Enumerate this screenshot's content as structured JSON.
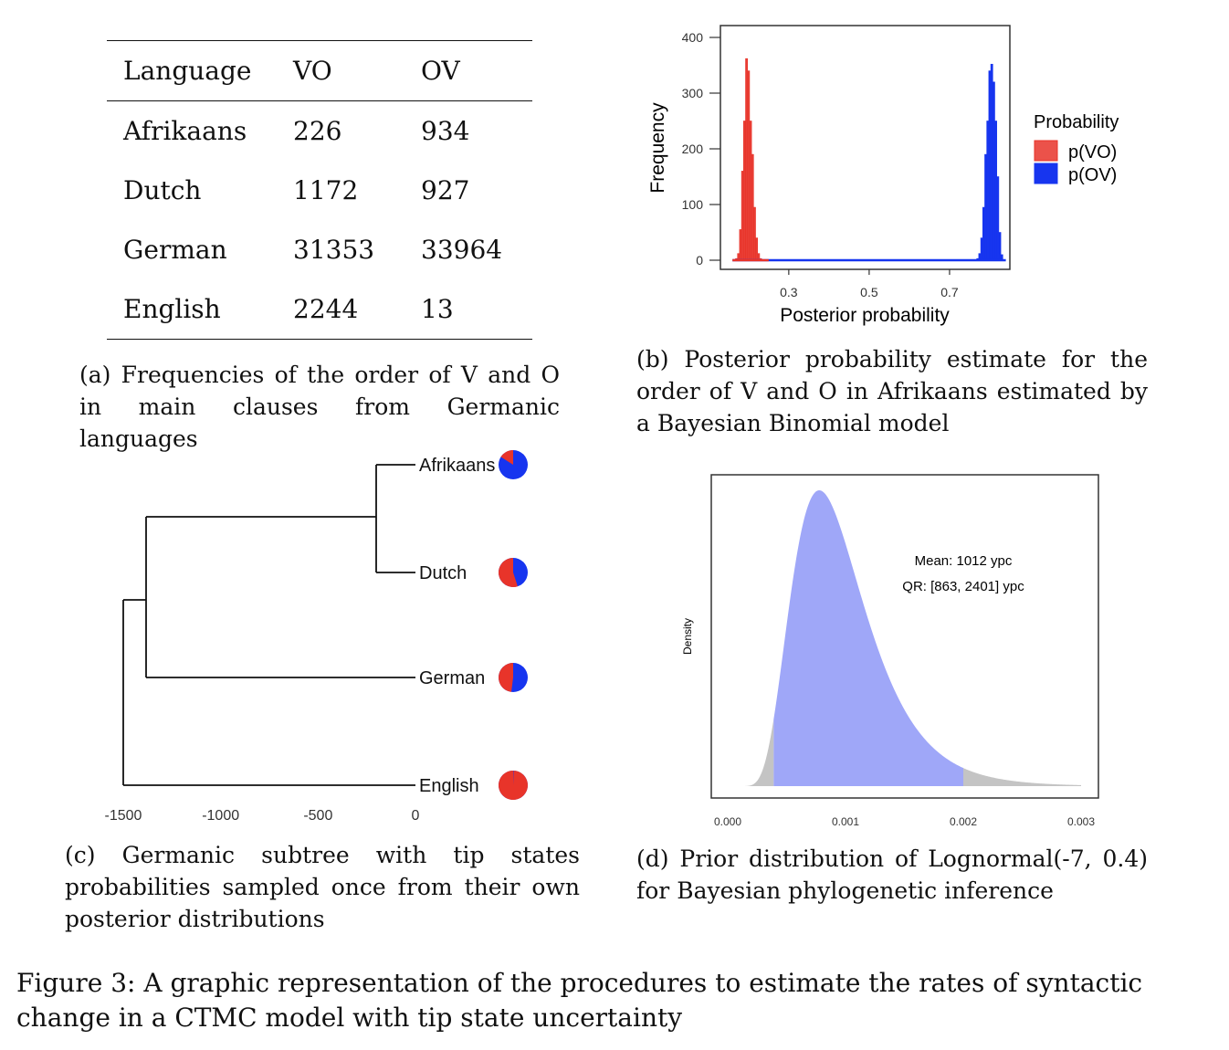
{
  "table_a": {
    "headers": [
      "Language",
      "VO",
      "OV"
    ],
    "rows": [
      [
        "Afrikaans",
        "226",
        "934"
      ],
      [
        "Dutch",
        "1172",
        "927"
      ],
      [
        "German",
        "31353",
        "33964"
      ],
      [
        "English",
        "2244",
        "13"
      ]
    ]
  },
  "captions": {
    "a": "(a) Frequencies of the order of V and O in main clauses from Germanic languages",
    "b": "(b) Posterior probability estimate for the order of V and O in Afrikaans estimated by a Bayesian Binomial model",
    "c": "(c) Germanic subtree with tip states probabilities sampled once from their own posterior distributions",
    "d": "(d) Prior distribution of Lognormal(-7, 0.4) for Bayesian phylogenetic inference",
    "figure": "Figure 3: A graphic representation of the procedures to estimate the rates of syntactic change in a CTMC model with tip state uncertainty"
  },
  "chart_data": [
    {
      "type": "histogram",
      "panel": "b",
      "xlabel": "Posterior probability",
      "ylabel": "Frequency",
      "xticks": [
        0.3,
        0.5,
        0.7
      ],
      "yticks": [
        0,
        100,
        200,
        300,
        400
      ],
      "xlim": [
        0.13,
        0.85
      ],
      "ylim": [
        0,
        410
      ],
      "legend": {
        "title": "Probability",
        "position": "right"
      },
      "series": [
        {
          "name": "p(VO)",
          "color": "#e8342a",
          "x": [
            0.17,
            0.175,
            0.18,
            0.185,
            0.19,
            0.195,
            0.2,
            0.205,
            0.21,
            0.215,
            0.22,
            0.225,
            0.23
          ],
          "values": [
            3,
            12,
            55,
            160,
            250,
            362,
            340,
            250,
            190,
            95,
            40,
            12,
            3
          ]
        },
        {
          "name": "p(OV)",
          "color": "#1735ef",
          "x": [
            0.77,
            0.775,
            0.78,
            0.785,
            0.79,
            0.795,
            0.8,
            0.805,
            0.81,
            0.815,
            0.82,
            0.825,
            0.83
          ],
          "values": [
            3,
            12,
            40,
            95,
            190,
            250,
            340,
            352,
            320,
            250,
            150,
            50,
            10
          ]
        }
      ]
    },
    {
      "type": "tree",
      "panel": "c",
      "xticks": [
        -1500,
        -1000,
        -500,
        0
      ],
      "tips": [
        {
          "name": "Afrikaans",
          "pVO": 0.16,
          "pOV": 0.84
        },
        {
          "name": "Dutch",
          "pVO": 0.55,
          "pOV": 0.45
        },
        {
          "name": "German",
          "pVO": 0.48,
          "pOV": 0.52
        },
        {
          "name": "English",
          "pVO": 0.995,
          "pOV": 0.005
        }
      ],
      "colors": {
        "VO": "#e8342a",
        "OV": "#1735ef"
      }
    },
    {
      "type": "area",
      "panel": "d",
      "ylabel": "Density",
      "xticks": [
        "0.000",
        "0.001",
        "0.002",
        "0.003"
      ],
      "xlim": [
        0.0,
        0.003
      ],
      "distribution": {
        "meanlog": -7,
        "sdlog": 0.4
      },
      "interval": [
        0.00039,
        0.002
      ],
      "annotations": [
        "Mean: 1012 ypc",
        "QR: [863, 2401] ypc"
      ],
      "fill_colors": {
        "inner": "#9fa7f8",
        "tails": "#c4c4c4"
      }
    }
  ]
}
